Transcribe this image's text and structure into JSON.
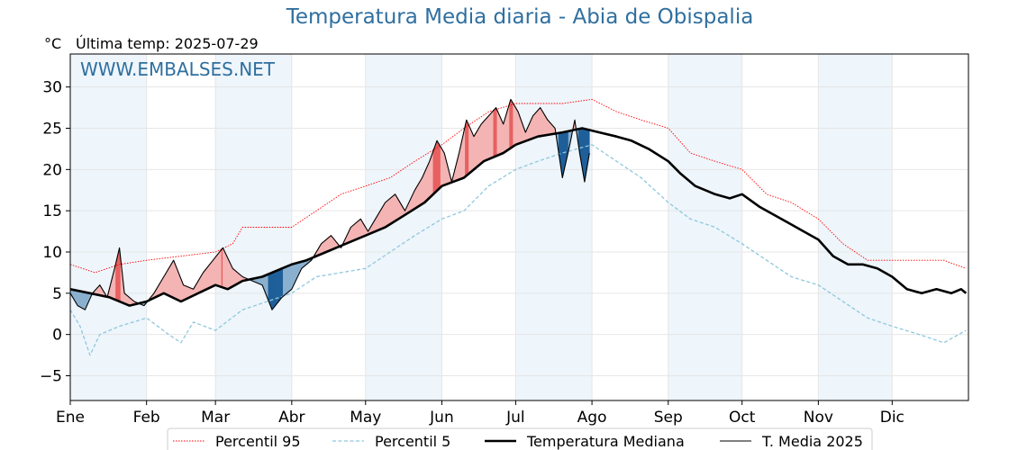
{
  "title": "Temperatura Media diaria - Abia de Obispalia",
  "header": {
    "unit": "°C",
    "last_temp_label": "Última temp:",
    "last_temp_date": "2025-07-29"
  },
  "watermark": "WWW.EMBALSES.NET",
  "chart_data": {
    "type": "line",
    "xlabel": "",
    "ylabel": "°C",
    "ylim": [
      -8,
      34
    ],
    "yticks": [
      -5,
      0,
      5,
      10,
      15,
      20,
      25,
      30
    ],
    "x_domain_days": [
      0,
      365
    ],
    "x_tick_days": [
      0,
      31,
      59,
      90,
      120,
      151,
      181,
      212,
      243,
      273,
      304,
      334
    ],
    "x_tick_labels": [
      "Ene",
      "Feb",
      "Mar",
      "Abr",
      "May",
      "Jun",
      "Jul",
      "Ago",
      "Sep",
      "Oct",
      "Nov",
      "Dic"
    ],
    "month_bands": [
      [
        0,
        31
      ],
      [
        59,
        90
      ],
      [
        120,
        151
      ],
      [
        181,
        212
      ],
      [
        243,
        273
      ],
      [
        304,
        334
      ]
    ],
    "grid": true,
    "legend_position": "bottom-center",
    "colors": {
      "p95": "#ff0000",
      "p5": "#8ec8dc",
      "median": "#000000",
      "current": "#000000",
      "above_fill": "#f4b4b4",
      "above_strong": "#e86060",
      "below_fill": "#8ab0cf",
      "below_strong": "#1f5f9a",
      "band": "#eef5fb",
      "title": "#2f6f9f",
      "watermark": "#2f6f9f"
    },
    "series": [
      {
        "name": "Percentil 95",
        "style": "dotted",
        "color": "#ff0000",
        "points": [
          [
            0,
            8.5
          ],
          [
            10,
            7.5
          ],
          [
            20,
            8.5
          ],
          [
            31,
            9
          ],
          [
            45,
            9.5
          ],
          [
            59,
            10
          ],
          [
            66,
            11
          ],
          [
            70,
            13
          ],
          [
            78,
            13
          ],
          [
            90,
            13
          ],
          [
            100,
            15
          ],
          [
            110,
            17
          ],
          [
            120,
            18
          ],
          [
            130,
            19
          ],
          [
            140,
            21
          ],
          [
            151,
            23
          ],
          [
            160,
            25
          ],
          [
            170,
            27
          ],
          [
            181,
            28
          ],
          [
            190,
            28
          ],
          [
            200,
            28
          ],
          [
            212,
            28.5
          ],
          [
            222,
            27
          ],
          [
            232,
            26
          ],
          [
            243,
            25
          ],
          [
            252,
            22
          ],
          [
            262,
            21
          ],
          [
            273,
            20
          ],
          [
            283,
            17
          ],
          [
            293,
            16
          ],
          [
            304,
            14
          ],
          [
            314,
            11
          ],
          [
            324,
            9
          ],
          [
            334,
            9
          ],
          [
            345,
            9
          ],
          [
            355,
            9
          ],
          [
            364,
            8
          ]
        ]
      },
      {
        "name": "Percentil 5",
        "style": "dashed",
        "color": "#8ec8dc",
        "points": [
          [
            0,
            3
          ],
          [
            4,
            1
          ],
          [
            8,
            -2.5
          ],
          [
            12,
            0
          ],
          [
            20,
            1
          ],
          [
            31,
            2
          ],
          [
            40,
            0
          ],
          [
            45,
            -1
          ],
          [
            50,
            1.5
          ],
          [
            59,
            0.5
          ],
          [
            70,
            3
          ],
          [
            80,
            4
          ],
          [
            90,
            5
          ],
          [
            100,
            7
          ],
          [
            110,
            7.5
          ],
          [
            120,
            8
          ],
          [
            130,
            10
          ],
          [
            140,
            12
          ],
          [
            151,
            14
          ],
          [
            160,
            15
          ],
          [
            170,
            18
          ],
          [
            181,
            20
          ],
          [
            190,
            21
          ],
          [
            200,
            22
          ],
          [
            212,
            23
          ],
          [
            222,
            21
          ],
          [
            232,
            19
          ],
          [
            243,
            16
          ],
          [
            252,
            14
          ],
          [
            262,
            13
          ],
          [
            273,
            11
          ],
          [
            283,
            9
          ],
          [
            293,
            7
          ],
          [
            304,
            6
          ],
          [
            314,
            4
          ],
          [
            324,
            2
          ],
          [
            334,
            1
          ],
          [
            345,
            0
          ],
          [
            355,
            -1
          ],
          [
            364,
            0.5
          ]
        ]
      },
      {
        "name": "Temperatura Mediana",
        "style": "solid-thick",
        "color": "#000000",
        "points": [
          [
            0,
            5.5
          ],
          [
            8,
            5
          ],
          [
            16,
            4.5
          ],
          [
            24,
            3.5
          ],
          [
            31,
            4
          ],
          [
            38,
            5
          ],
          [
            45,
            4
          ],
          [
            52,
            5
          ],
          [
            59,
            6
          ],
          [
            64,
            5.5
          ],
          [
            70,
            6.5
          ],
          [
            78,
            7
          ],
          [
            86,
            8
          ],
          [
            90,
            8.5
          ],
          [
            96,
            9
          ],
          [
            104,
            10
          ],
          [
            112,
            11
          ],
          [
            120,
            12
          ],
          [
            128,
            13
          ],
          [
            136,
            14.5
          ],
          [
            144,
            16
          ],
          [
            151,
            18
          ],
          [
            160,
            19
          ],
          [
            168,
            21
          ],
          [
            176,
            22
          ],
          [
            181,
            23
          ],
          [
            190,
            24
          ],
          [
            200,
            24.5
          ],
          [
            208,
            25
          ],
          [
            215,
            24.5
          ],
          [
            222,
            24
          ],
          [
            228,
            23.5
          ],
          [
            235,
            22.5
          ],
          [
            243,
            21
          ],
          [
            248,
            19.5
          ],
          [
            254,
            18
          ],
          [
            262,
            17
          ],
          [
            268,
            16.5
          ],
          [
            273,
            17
          ],
          [
            280,
            15.5
          ],
          [
            286,
            14.5
          ],
          [
            292,
            13.5
          ],
          [
            298,
            12.5
          ],
          [
            304,
            11.5
          ],
          [
            310,
            9.5
          ],
          [
            316,
            8.5
          ],
          [
            322,
            8.5
          ],
          [
            328,
            8
          ],
          [
            334,
            7
          ],
          [
            340,
            5.5
          ],
          [
            346,
            5
          ],
          [
            352,
            5.5
          ],
          [
            358,
            5
          ],
          [
            362,
            5.5
          ],
          [
            364,
            5
          ]
        ]
      },
      {
        "name": "T. Media 2025",
        "style": "solid-thin",
        "color": "#000000",
        "points": [
          [
            0,
            5
          ],
          [
            3,
            3.5
          ],
          [
            6,
            3
          ],
          [
            9,
            5
          ],
          [
            12,
            6
          ],
          [
            15,
            4.5
          ],
          [
            18,
            8
          ],
          [
            20,
            10.5
          ],
          [
            22,
            5
          ],
          [
            26,
            4
          ],
          [
            30,
            3.5
          ],
          [
            34,
            5
          ],
          [
            38,
            7
          ],
          [
            42,
            9
          ],
          [
            46,
            6
          ],
          [
            50,
            5.5
          ],
          [
            54,
            7.5
          ],
          [
            58,
            9
          ],
          [
            62,
            10.5
          ],
          [
            66,
            8
          ],
          [
            70,
            7
          ],
          [
            74,
            6.5
          ],
          [
            78,
            6
          ],
          [
            82,
            3
          ],
          [
            86,
            4.5
          ],
          [
            90,
            5.5
          ],
          [
            94,
            8
          ],
          [
            98,
            9
          ],
          [
            102,
            11
          ],
          [
            106,
            12
          ],
          [
            110,
            10.5
          ],
          [
            114,
            13
          ],
          [
            118,
            14
          ],
          [
            121,
            12.5
          ],
          [
            124,
            14
          ],
          [
            128,
            16
          ],
          [
            132,
            17
          ],
          [
            136,
            15
          ],
          [
            140,
            17.5
          ],
          [
            143,
            19
          ],
          [
            146,
            21
          ],
          [
            149,
            23.5
          ],
          [
            152,
            22
          ],
          [
            155,
            18.5
          ],
          [
            158,
            22
          ],
          [
            161,
            26
          ],
          [
            164,
            24
          ],
          [
            167,
            25.5
          ],
          [
            170,
            26.5
          ],
          [
            173,
            27.5
          ],
          [
            176,
            25.5
          ],
          [
            179,
            28.5
          ],
          [
            182,
            27
          ],
          [
            185,
            24.5
          ],
          [
            188,
            26.5
          ],
          [
            191,
            27.5
          ],
          [
            194,
            26
          ],
          [
            197,
            25
          ],
          [
            200,
            19
          ],
          [
            203,
            23
          ],
          [
            205,
            26
          ],
          [
            207,
            22
          ],
          [
            209,
            18.5
          ],
          [
            211,
            22
          ]
        ]
      }
    ]
  },
  "legend": [
    {
      "label": "Percentil 95"
    },
    {
      "label": "Percentil 5"
    },
    {
      "label": "Temperatura Mediana"
    },
    {
      "label": "T. Media 2025"
    }
  ]
}
